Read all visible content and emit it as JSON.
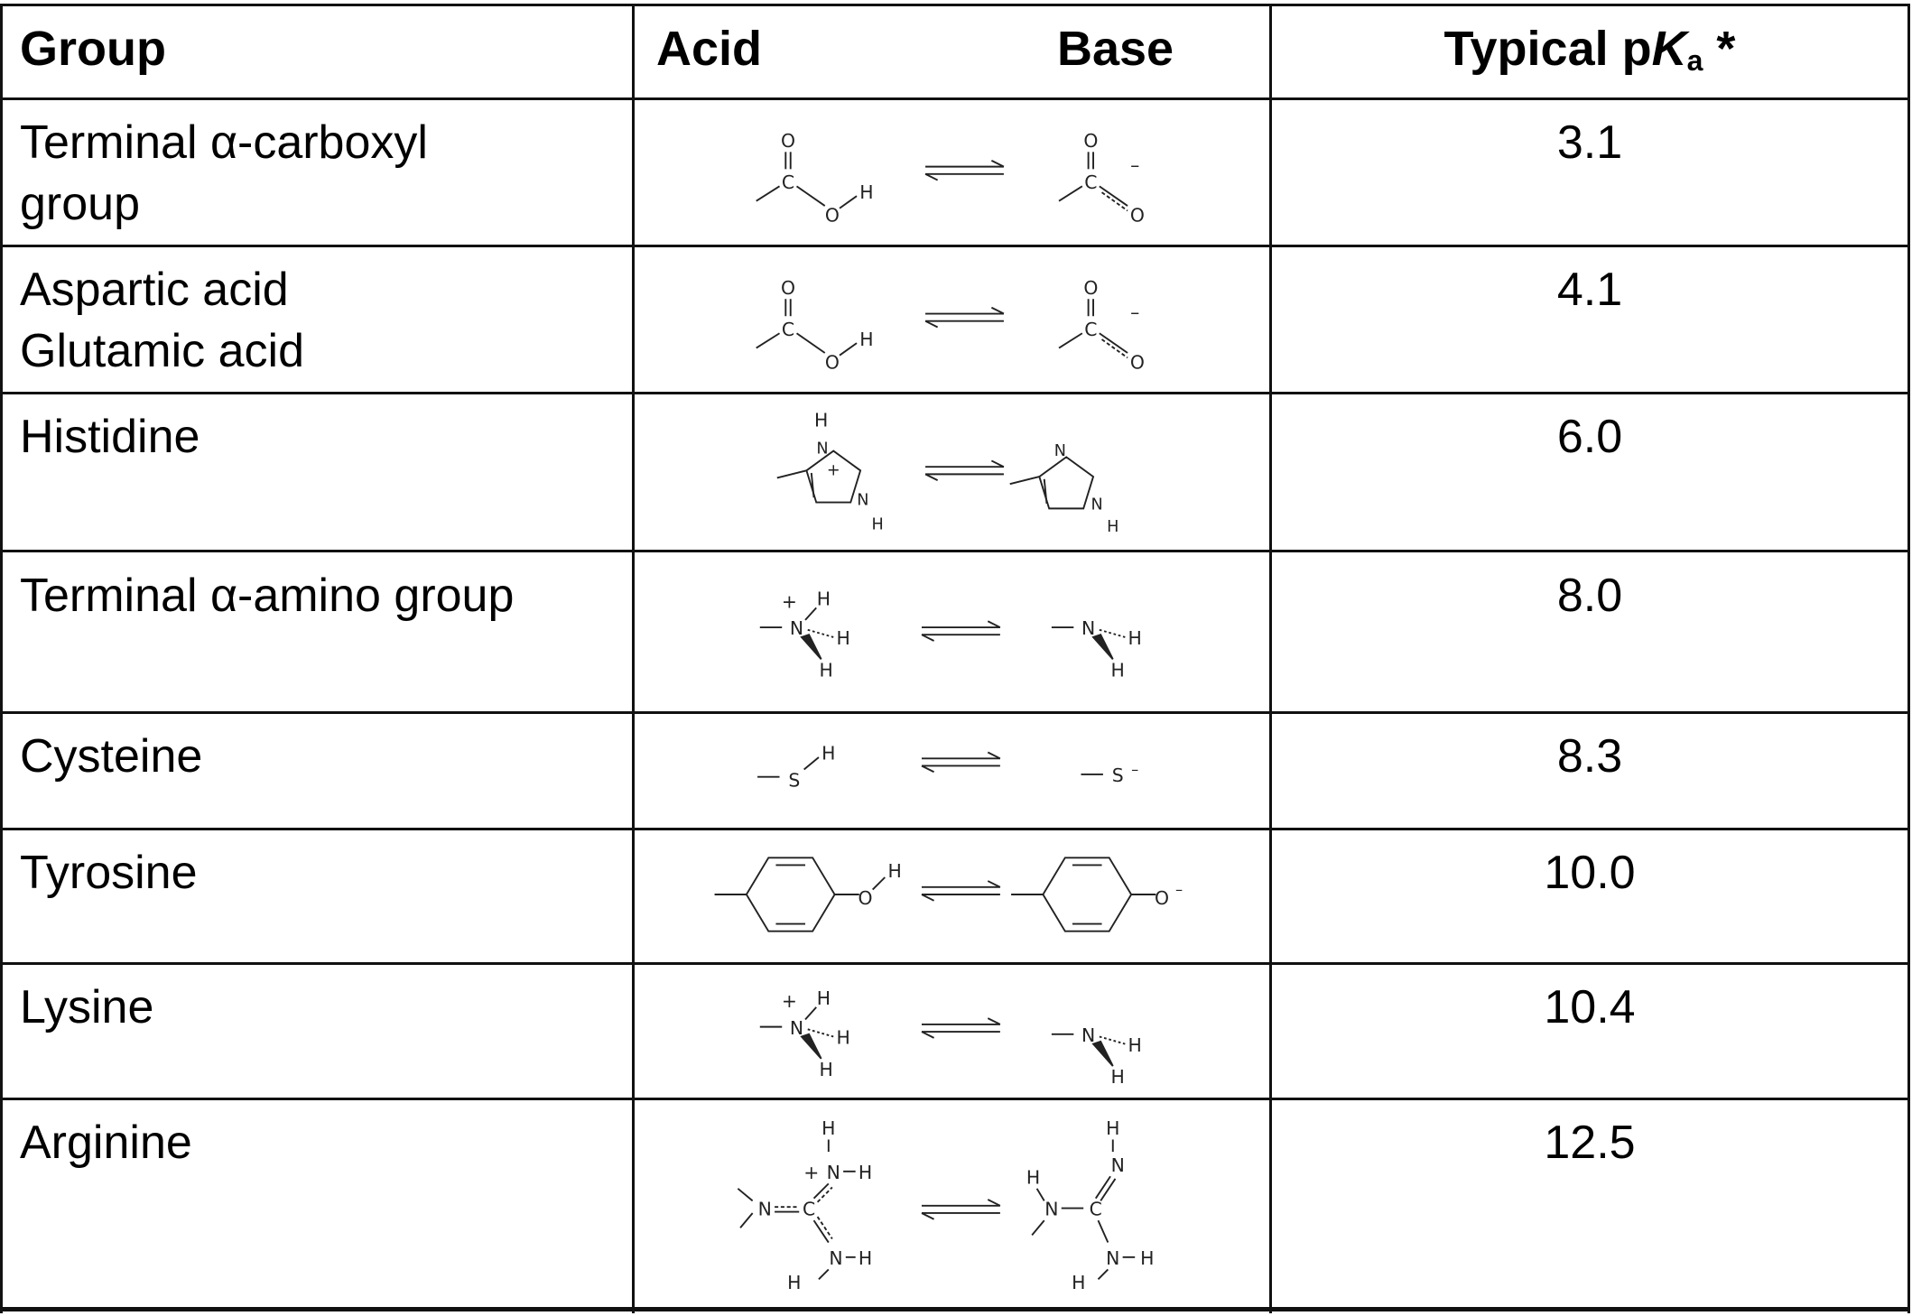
{
  "header": {
    "group": "Group",
    "acid": "Acid",
    "base": "Base",
    "pka_prefix": "Typical p",
    "pka_K": "K",
    "pka_sub": "a",
    "pka_suffix": " *"
  },
  "rows": [
    {
      "group": [
        "Terminal α-carboxyl",
        "group"
      ],
      "pka": "3.1",
      "structure": "carboxyl"
    },
    {
      "group": [
        "Aspartic acid",
        "Glutamic acid"
      ],
      "pka": "4.1",
      "structure": "carboxyl"
    },
    {
      "group": [
        "Histidine"
      ],
      "pka": "6.0",
      "structure": "imidazole"
    },
    {
      "group": [
        "Terminal α-amino group"
      ],
      "pka": "8.0",
      "structure": "amine"
    },
    {
      "group": [
        "Cysteine"
      ],
      "pka": "8.3",
      "structure": "thiol"
    },
    {
      "group": [
        "Tyrosine"
      ],
      "pka": "10.0",
      "structure": "phenol"
    },
    {
      "group": [
        "Lysine"
      ],
      "pka": "10.4",
      "structure": "amine"
    },
    {
      "group": [
        "Arginine"
      ],
      "pka": "12.5",
      "structure": "guanidine"
    }
  ]
}
